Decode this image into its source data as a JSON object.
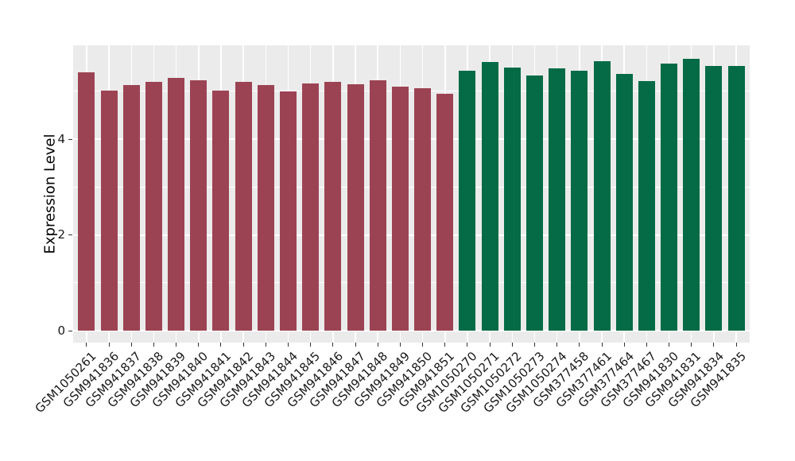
{
  "chart_data": {
    "type": "bar",
    "title": "",
    "xlabel": "",
    "ylabel": "Expression Level",
    "yticks": [
      0,
      2,
      4
    ],
    "yticks_minor": [
      1,
      3,
      5
    ],
    "ylim": [
      -0.25,
      5.96
    ],
    "grid": "on",
    "legend_position": "none",
    "panel_background": "#ebebeb",
    "gridline_color": "#ffffff",
    "tick_color": "#333333",
    "text_color": "#1a1a1a",
    "categories": [
      "GSM1050261",
      "GSM941836",
      "GSM941837",
      "GSM941838",
      "GSM941839",
      "GSM941840",
      "GSM941841",
      "GSM941842",
      "GSM941843",
      "GSM941844",
      "GSM941845",
      "GSM941846",
      "GSM941847",
      "GSM941848",
      "GSM941849",
      "GSM941850",
      "GSM941851",
      "GSM1050270",
      "GSM1050271",
      "GSM1050272",
      "GSM1050273",
      "GSM1050274",
      "GSM377458",
      "GSM377461",
      "GSM377464",
      "GSM377467",
      "GSM941830",
      "GSM941831",
      "GSM941834",
      "GSM941835"
    ],
    "values": [
      5.39,
      5.02,
      5.13,
      5.2,
      5.28,
      5.23,
      5.02,
      5.19,
      5.13,
      5.0,
      5.16,
      5.19,
      5.15,
      5.22,
      5.09,
      5.07,
      4.95,
      5.43,
      5.61,
      5.49,
      5.32,
      5.47,
      5.42,
      5.63,
      5.36,
      5.21,
      5.57,
      5.67,
      5.52,
      5.53
    ],
    "bar_color_groups": [
      {
        "color": "#9c4353",
        "from_index": 0,
        "to_index": 16
      },
      {
        "color": "#046b46",
        "from_index": 17,
        "to_index": 29
      }
    ]
  }
}
